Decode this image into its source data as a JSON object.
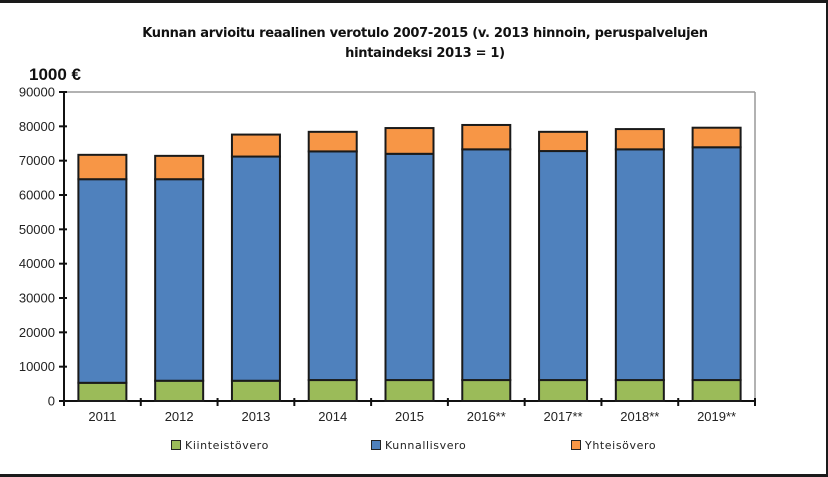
{
  "chart_data": {
    "type": "bar",
    "stacked": true,
    "title": "Kunnan arvioitu reaalinen verotulo 2007-2015 (v. 2013 hinnoin, peruspalvelujen hintaindeksi 2013 = 1)",
    "title_lines": [
      "Kunnan arvioitu reaalinen verotulo 2007-2015 (v. 2013 hinnoin, peruspalvelujen",
      "hintaindeksi 2013 = 1)"
    ],
    "ylabel": "1000 €",
    "xlabel": "",
    "ylim": [
      0,
      90000
    ],
    "yticks": [
      0,
      10000,
      20000,
      30000,
      40000,
      50000,
      60000,
      70000,
      80000,
      90000
    ],
    "ytick_labels": [
      "0",
      "10000",
      "20000",
      "30000",
      "40000",
      "50000",
      "60000",
      "70000",
      "80000",
      "90000"
    ],
    "grid": false,
    "legend_position": "bottom",
    "categories": [
      "2011",
      "2012",
      "2013",
      "2014",
      "2015",
      "2016**",
      "2017**",
      "2018**",
      "2019**"
    ],
    "series": [
      {
        "name": "Kiinteistövero",
        "color": "#9bbb59",
        "values": [
          5300,
          5900,
          5900,
          6100,
          6100,
          6100,
          6100,
          6100,
          6100
        ]
      },
      {
        "name": "Kunnallisvero",
        "color": "#4f81bd",
        "values": [
          59300,
          58700,
          65300,
          66600,
          65900,
          67200,
          66700,
          67200,
          67800
        ]
      },
      {
        "name": "Yhteisövero",
        "color": "#f79646",
        "values": [
          7100,
          6800,
          6400,
          5700,
          7500,
          7100,
          5600,
          5900,
          5700
        ]
      }
    ]
  }
}
